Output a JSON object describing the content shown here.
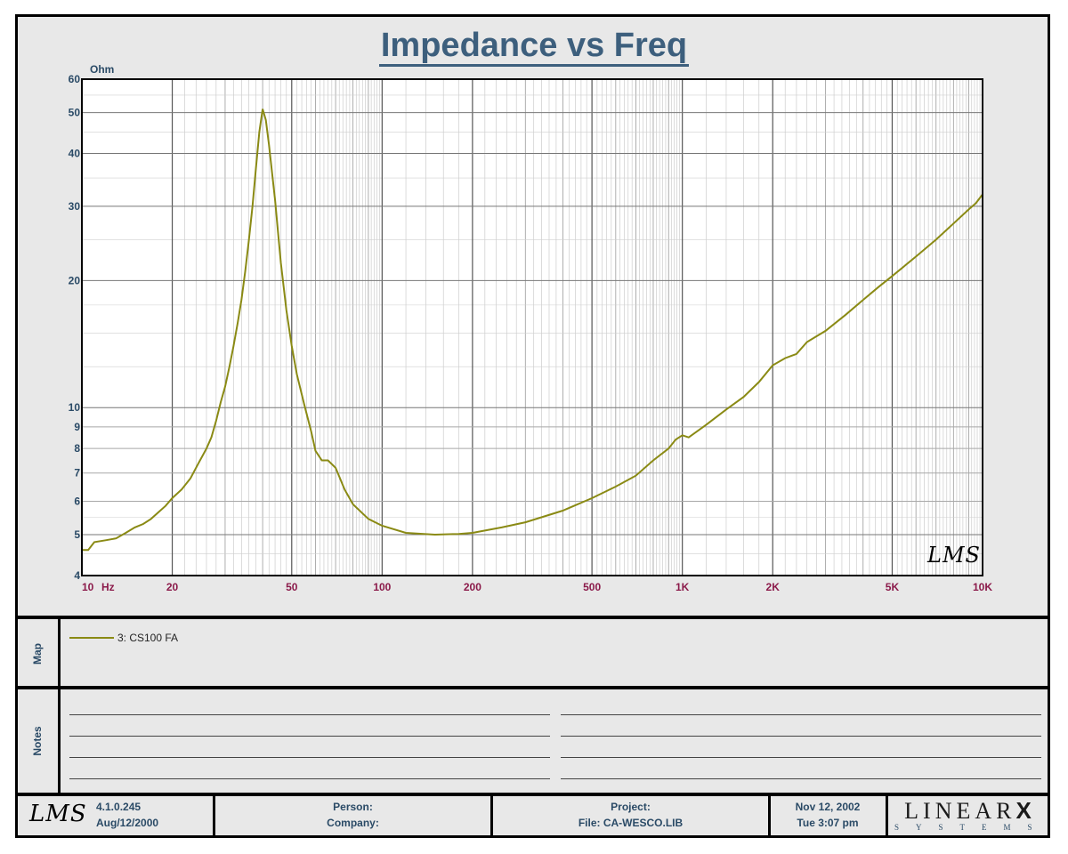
{
  "chart_data": {
    "type": "line",
    "title": "Impedance vs Freq",
    "ylabel": "Ohm",
    "xunit": "Hz",
    "xscale": "log",
    "yscale": "log",
    "xlim": [
      10,
      10000
    ],
    "ylim": [
      4,
      60
    ],
    "grid": true,
    "yticks": [
      {
        "v": 60,
        "label": "60"
      },
      {
        "v": 50,
        "label": "50"
      },
      {
        "v": 40,
        "label": "40"
      },
      {
        "v": 30,
        "label": "30"
      },
      {
        "v": 20,
        "label": "20"
      },
      {
        "v": 10,
        "label": "10"
      },
      {
        "v": 9,
        "label": "9"
      },
      {
        "v": 8,
        "label": "8"
      },
      {
        "v": 7,
        "label": "7"
      },
      {
        "v": 6,
        "label": "6"
      },
      {
        "v": 5,
        "label": "5"
      },
      {
        "v": 4,
        "label": "4"
      }
    ],
    "xticks": [
      {
        "v": 10,
        "label": "10"
      },
      {
        "v": 20,
        "label": "20"
      },
      {
        "v": 50,
        "label": "50"
      },
      {
        "v": 100,
        "label": "100"
      },
      {
        "v": 200,
        "label": "200"
      },
      {
        "v": 500,
        "label": "500"
      },
      {
        "v": 1000,
        "label": "1K"
      },
      {
        "v": 2000,
        "label": "2K"
      },
      {
        "v": 5000,
        "label": "5K"
      },
      {
        "v": 10000,
        "label": "10K"
      }
    ],
    "series": [
      {
        "name": "3: CS100 FA",
        "color": "#8a8a14",
        "points": [
          [
            10,
            4.6
          ],
          [
            10.5,
            4.6
          ],
          [
            11,
            4.8
          ],
          [
            12,
            4.85
          ],
          [
            13,
            4.9
          ],
          [
            14,
            5.05
          ],
          [
            15,
            5.2
          ],
          [
            16,
            5.3
          ],
          [
            17,
            5.45
          ],
          [
            18,
            5.65
          ],
          [
            19,
            5.85
          ],
          [
            20,
            6.1
          ],
          [
            21.5,
            6.4
          ],
          [
            23,
            6.8
          ],
          [
            24.5,
            7.4
          ],
          [
            26,
            8.0
          ],
          [
            27,
            8.5
          ],
          [
            28,
            9.3
          ],
          [
            29,
            10.3
          ],
          [
            30,
            11.2
          ],
          [
            31,
            12.5
          ],
          [
            32,
            14.0
          ],
          [
            33,
            15.8
          ],
          [
            34,
            18.0
          ],
          [
            35,
            21.0
          ],
          [
            36,
            25.0
          ],
          [
            37,
            30.0
          ],
          [
            38,
            37.0
          ],
          [
            39,
            45.0
          ],
          [
            40,
            51.0
          ],
          [
            41,
            48.0
          ],
          [
            42,
            42.0
          ],
          [
            43,
            36.0
          ],
          [
            44,
            31.0
          ],
          [
            45,
            26.0
          ],
          [
            46,
            22.0
          ],
          [
            48,
            17.0
          ],
          [
            50,
            14.0
          ],
          [
            52,
            12.0
          ],
          [
            55,
            10.2
          ],
          [
            58,
            8.8
          ],
          [
            60,
            7.9
          ],
          [
            63,
            7.5
          ],
          [
            66,
            7.5
          ],
          [
            70,
            7.2
          ],
          [
            75,
            6.4
          ],
          [
            80,
            5.9
          ],
          [
            90,
            5.45
          ],
          [
            100,
            5.25
          ],
          [
            120,
            5.05
          ],
          [
            150,
            5.0
          ],
          [
            180,
            5.02
          ],
          [
            200,
            5.05
          ],
          [
            250,
            5.2
          ],
          [
            300,
            5.35
          ],
          [
            400,
            5.7
          ],
          [
            500,
            6.1
          ],
          [
            600,
            6.5
          ],
          [
            700,
            6.9
          ],
          [
            800,
            7.5
          ],
          [
            900,
            8.0
          ],
          [
            950,
            8.4
          ],
          [
            1000,
            8.6
          ],
          [
            1050,
            8.5
          ],
          [
            1200,
            9.1
          ],
          [
            1400,
            9.9
          ],
          [
            1600,
            10.6
          ],
          [
            1800,
            11.5
          ],
          [
            2000,
            12.6
          ],
          [
            2200,
            13.1
          ],
          [
            2400,
            13.4
          ],
          [
            2600,
            14.3
          ],
          [
            3000,
            15.2
          ],
          [
            3500,
            16.6
          ],
          [
            4000,
            18.0
          ],
          [
            4500,
            19.3
          ],
          [
            5000,
            20.5
          ],
          [
            6000,
            22.8
          ],
          [
            7000,
            25.0
          ],
          [
            8000,
            27.3
          ],
          [
            9000,
            29.5
          ],
          [
            9500,
            30.5
          ],
          [
            10000,
            32.0
          ]
        ]
      }
    ]
  },
  "side_labels": {
    "map": "Map",
    "notes": "Notes"
  },
  "footer": {
    "version": "4.1.0.245",
    "build_date": "Aug/12/2000",
    "person_label": "Person:",
    "company_label": "Company:",
    "project_label": "Project:",
    "file": "File: CA-WESCO.LIB",
    "date": "Nov 12, 2002",
    "time": "Tue  3:07 pm"
  },
  "logos": {
    "lms": "LMS",
    "linearx_main": "LINEAR",
    "linearx_x": "X",
    "linearx_sub": "SYSTEMS"
  }
}
